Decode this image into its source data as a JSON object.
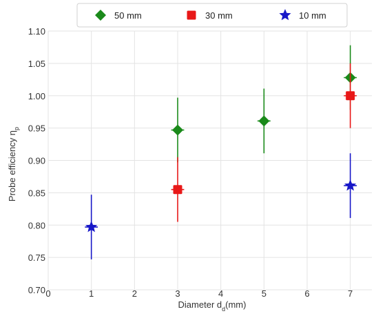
{
  "chart_data": {
    "type": "scatter",
    "xlabel": "Diameter d",
    "xlabel_sub": "d",
    "xlabel_unit": "(mm)",
    "ylabel": "Probe efficiency η",
    "ylabel_sub": "p",
    "xlim": [
      0,
      7.5
    ],
    "ylim": [
      0.7,
      1.1
    ],
    "xticks": [
      "0",
      "1",
      "2",
      "3",
      "4",
      "5",
      "6",
      "7"
    ],
    "yticks": [
      "0.70",
      "0.75",
      "0.80",
      "0.85",
      "0.90",
      "0.95",
      "1.00",
      "1.05",
      "1.10"
    ],
    "grid": true,
    "legend_position": "top",
    "series": [
      {
        "name": "50 mm",
        "color": "#1a8a1a",
        "marker": "diamond",
        "points": [
          {
            "x": 3,
            "y": 0.947,
            "yerr": 0.05,
            "xerr": 0.15
          },
          {
            "x": 5,
            "y": 0.961,
            "yerr": 0.05,
            "xerr": 0.15
          },
          {
            "x": 7,
            "y": 1.028,
            "yerr": 0.05,
            "xerr": 0.15
          }
        ]
      },
      {
        "name": "30 mm",
        "color": "#e81818",
        "marker": "square",
        "points": [
          {
            "x": 3,
            "y": 0.855,
            "yerr": 0.05,
            "xerr": 0.15
          },
          {
            "x": 7,
            "y": 1.0,
            "yerr": 0.05,
            "xerr": 0.15
          }
        ]
      },
      {
        "name": "10 mm",
        "color": "#1818c8",
        "marker": "star",
        "points": [
          {
            "x": 1,
            "y": 0.797,
            "yerr": 0.05,
            "xerr": 0.15
          },
          {
            "x": 7,
            "y": 0.861,
            "yerr": 0.05,
            "xerr": 0.15
          }
        ]
      }
    ]
  }
}
